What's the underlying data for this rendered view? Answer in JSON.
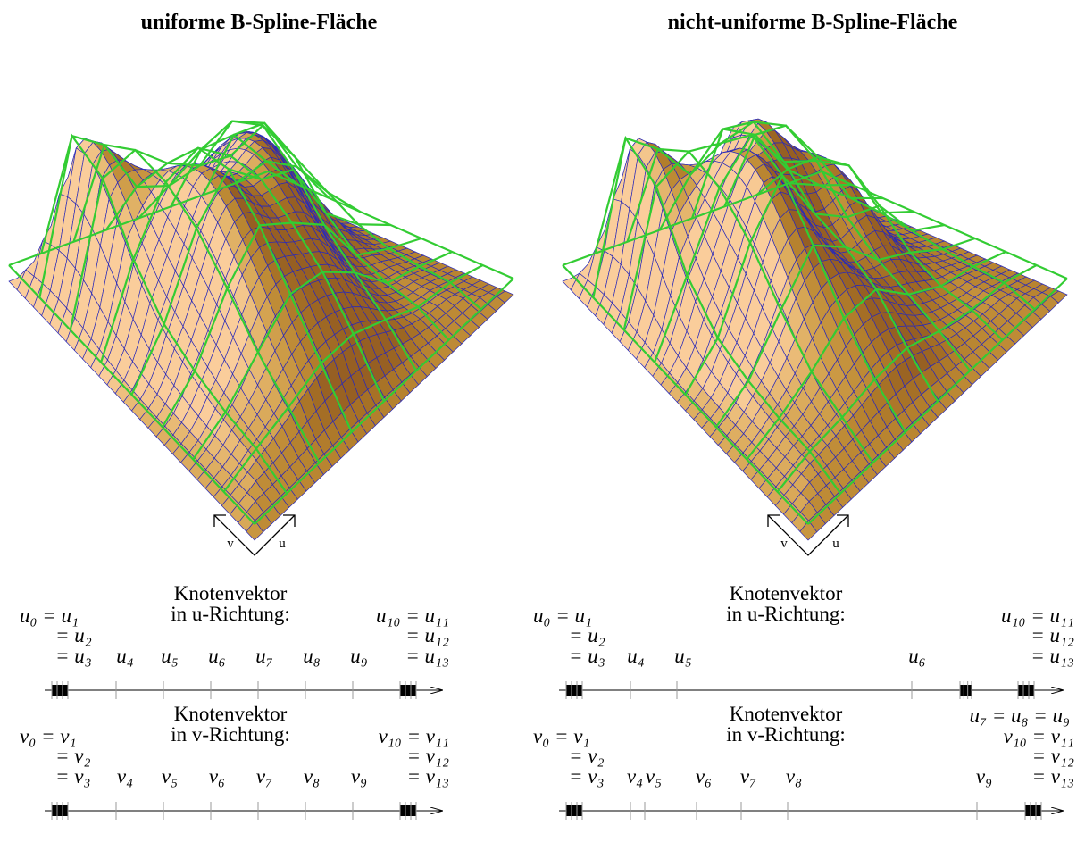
{
  "panels": [
    {
      "title": "uniforme B-Spline-Fläche",
      "axis_labels": {
        "v": "v",
        "u": "u"
      },
      "knot_vectors": [
        {
          "heading": "Knotenvektor",
          "direction": "in u-Richtung:",
          "labels": [
            "u₀ = u₁",
            "= u₂",
            "= u₃",
            "u₄",
            "u₅",
            "u₆",
            "u₇",
            "u₈",
            "u₉",
            "u₁₀ = u₁₁",
            "= u₁₂",
            "= u₁₃"
          ]
        },
        {
          "heading": "Knotenvektor",
          "direction": "in v-Richtung:",
          "labels": [
            "v₀ = v₁",
            "= v₂",
            "= v₃",
            "v₄",
            "v₅",
            "v₆",
            "v₇",
            "v₈",
            "v₉",
            "v₁₀ = v₁₁",
            "= v₁₂",
            "= v₁₃"
          ]
        }
      ]
    },
    {
      "title": "nicht-uniforme B-Spline-Fläche",
      "axis_labels": {
        "v": "v",
        "u": "u"
      },
      "knot_vectors": [
        {
          "heading": "Knotenvektor",
          "direction": "in u-Richtung:",
          "labels": [
            "u₀ = u₁",
            "= u₂",
            "= u₃",
            "u₄",
            "u₅",
            "u₆",
            "u₁₀ = u₁₁",
            "= u₁₂",
            "= u₁₃",
            "u₇ = u₈ = u₉"
          ]
        },
        {
          "heading": "Knotenvektor",
          "direction": "in v-Richtung:",
          "labels": [
            "v₀ = v₁",
            "= v₂",
            "= v₃",
            "v₄",
            "v₅",
            "v₆",
            "v₇",
            "v₈",
            "v₉",
            "v₁₀ = v₁₁",
            "= v₁₂",
            "= v₁₃"
          ]
        }
      ]
    }
  ]
}
